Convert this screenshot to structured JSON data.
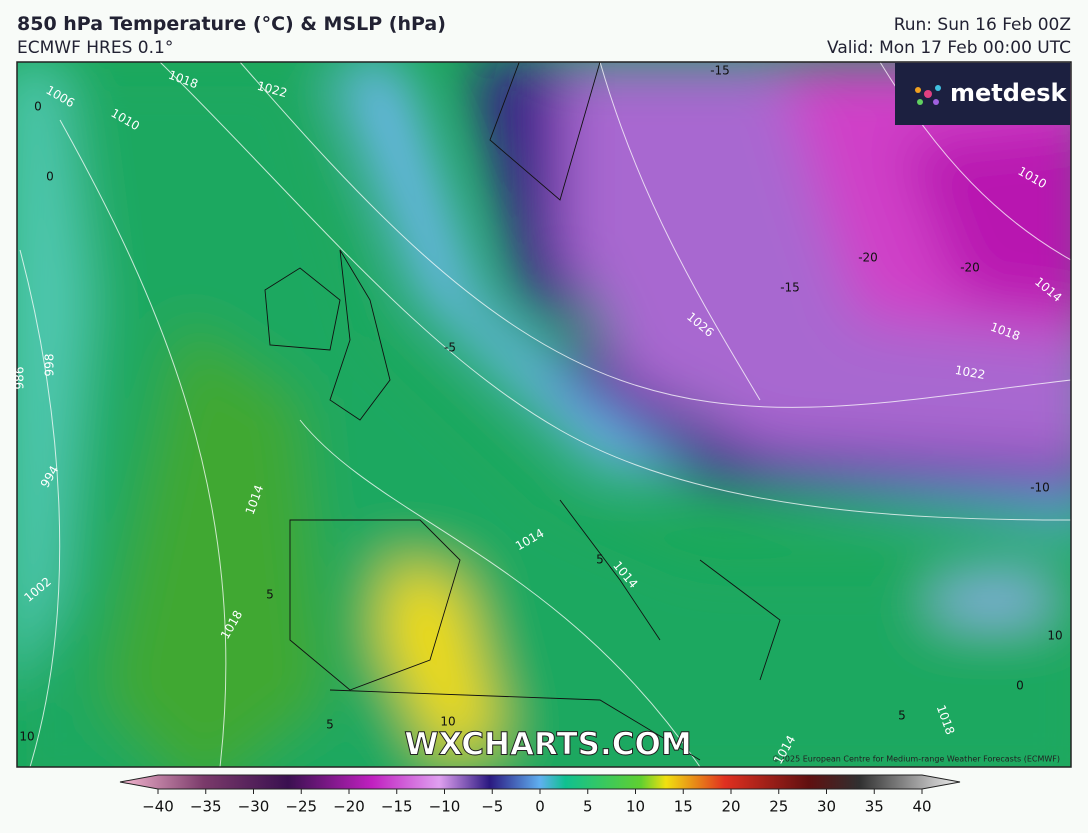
{
  "header": {
    "title": "850 hPa Temperature (°C) & MSLP (hPa)",
    "subtitle": "ECMWF HRES 0.1°",
    "run": "Run: Sun 16 Feb 00Z",
    "valid": "Valid: Mon 17 Feb 00:00 UTC"
  },
  "logo": "metdesk",
  "watermark": "WXCHARTS.COM",
  "copyright": "©2025 European Centre for Medium-range Weather Forecasts (ECMWF)",
  "colorbar": {
    "lim": [
      -40,
      40
    ],
    "ticks": [
      {
        "value": -40,
        "label": "−40"
      },
      {
        "value": -35,
        "label": "−35"
      },
      {
        "value": -30,
        "label": "−30"
      },
      {
        "value": -25,
        "label": "−25"
      },
      {
        "value": -20,
        "label": "−20"
      },
      {
        "value": -15,
        "label": "−15"
      },
      {
        "value": -10,
        "label": "−10"
      },
      {
        "value": -5,
        "label": "−5"
      },
      0,
      5,
      10,
      15,
      20,
      25,
      30,
      35,
      40
    ]
  },
  "isobar_labels": [
    "1018",
    "1022",
    "1006",
    "1010",
    "1026",
    "1014",
    "1018",
    "1022",
    "1010",
    "994",
    "1014",
    "1002",
    "1018",
    "1014",
    "1014",
    "1018",
    "1014",
    "998",
    "986"
  ],
  "isotherm_labels": [
    "0",
    "0",
    "-20",
    "-20",
    "-15",
    "-15",
    "-5",
    "-10",
    "5",
    "10",
    "10",
    "5",
    "5",
    "0",
    "10",
    "5"
  ]
}
